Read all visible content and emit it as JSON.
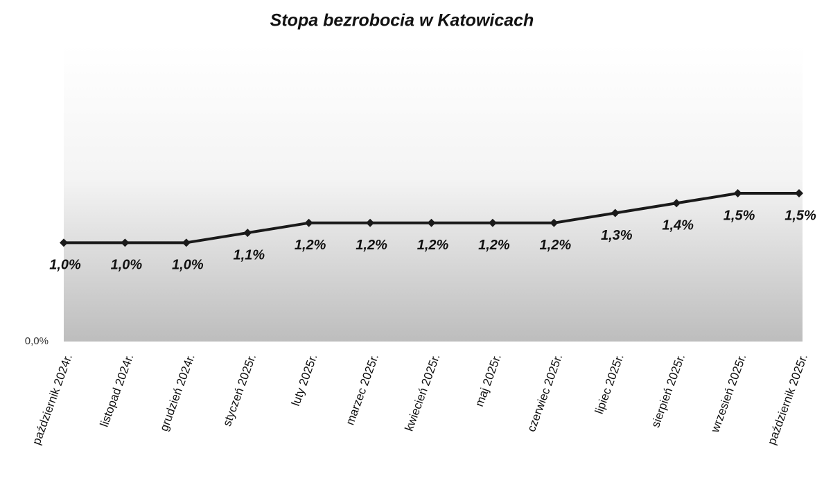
{
  "chart_data": {
    "type": "line",
    "title": "Stopa bezrobocia w Katowicach",
    "categories": [
      "październik 2024r.",
      "listopad 2024r.",
      "grudzień 2024r.",
      "styczeń 2025r.",
      "luty 2025r.",
      "marzec 2025r.",
      "kwiecień 2025r.",
      "maj 2025r.",
      "czerwiec 2025r.",
      "lipiec 2025r.",
      "sierpień 2025r.",
      "wrzesień 2025r.",
      "październik 2025r."
    ],
    "values": [
      1.0,
      1.0,
      1.0,
      1.1,
      1.2,
      1.2,
      1.2,
      1.2,
      1.2,
      1.3,
      1.4,
      1.5,
      1.5
    ],
    "value_labels": [
      "1,0%",
      "1,0%",
      "1,0%",
      "1,1%",
      "1,2%",
      "1,2%",
      "1,2%",
      "1,2%",
      "1,2%",
      "1,3%",
      "1,4%",
      "1,5%",
      "1,5%"
    ],
    "color": "#1a1a1a",
    "ylim": [
      0,
      3
    ],
    "yticks": [
      {
        "value": 0,
        "label": "0,0%"
      }
    ],
    "grid": false
  }
}
